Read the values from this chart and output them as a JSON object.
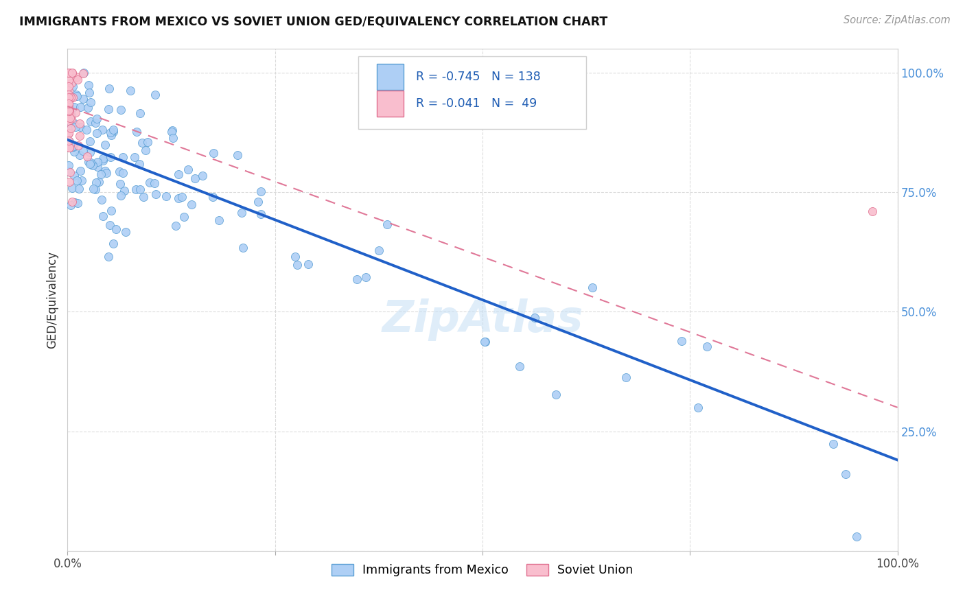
{
  "title": "IMMIGRANTS FROM MEXICO VS SOVIET UNION GED/EQUIVALENCY CORRELATION CHART",
  "source": "Source: ZipAtlas.com",
  "ylabel": "GED/Equivalency",
  "xlim": [
    0.0,
    1.0
  ],
  "ylim": [
    0.0,
    1.05
  ],
  "mexico_R": -0.745,
  "mexico_N": 138,
  "soviet_R": -0.041,
  "soviet_N": 49,
  "mexico_color": "#aecff5",
  "mexico_edge_color": "#5a9fd4",
  "mexico_line_color": "#2060c8",
  "soviet_color": "#f9bece",
  "soviet_edge_color": "#e07090",
  "soviet_line_color": "#e07898",
  "legend_text_color": "#1e5cb3",
  "background_color": "#ffffff",
  "grid_color": "#d8d8d8",
  "right_tick_color": "#4a90d9",
  "mex_line_start_y": 0.86,
  "mex_line_end_y": 0.19,
  "sov_line_start_y": 0.93,
  "sov_line_end_y": 0.3
}
